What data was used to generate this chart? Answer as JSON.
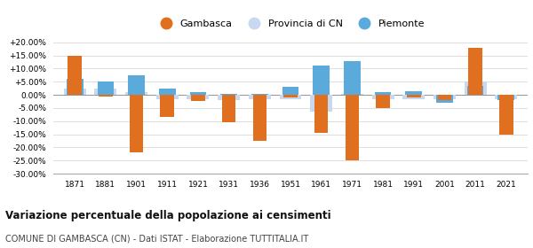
{
  "years": [
    1871,
    1881,
    1901,
    1911,
    1921,
    1931,
    1936,
    1951,
    1961,
    1971,
    1981,
    1991,
    2001,
    2011,
    2021
  ],
  "gambasca": [
    15.0,
    -0.5,
    -22.0,
    -8.5,
    -2.5,
    -10.5,
    -17.5,
    -1.0,
    -14.5,
    -25.0,
    -5.0,
    -1.0,
    -2.0,
    18.0,
    -15.0
  ],
  "provincia_cn": [
    2.5,
    2.5,
    1.0,
    -1.5,
    -1.5,
    -2.0,
    -1.5,
    -1.5,
    -6.5,
    0.5,
    -1.5,
    -1.5,
    -1.5,
    5.0,
    -1.5
  ],
  "piemonte": [
    6.0,
    5.0,
    7.5,
    2.5,
    1.0,
    0.5,
    0.5,
    3.0,
    11.0,
    13.0,
    1.0,
    1.5,
    -3.0,
    3.5,
    -2.0
  ],
  "color_gambasca": "#e07020",
  "color_provincia": "#c8d8f0",
  "color_piemonte": "#5aabdc",
  "ylim_min": -30,
  "ylim_max": 20,
  "yticks": [
    -30,
    -25,
    -20,
    -15,
    -10,
    -5,
    0,
    5,
    10,
    15,
    20
  ],
  "ytick_labels": [
    "-30.00%",
    "-25.00%",
    "-20.00%",
    "-15.00%",
    "-10.00%",
    "-5.00%",
    "0.00%",
    "+5.00%",
    "+10.00%",
    "+15.00%",
    "+20.00%"
  ],
  "title": "Variazione percentuale della popolazione ai censimenti",
  "subtitle": "COMUNE DI GAMBASCA (CN) - Dati ISTAT - Elaborazione TUTTITALIA.IT",
  "legend_labels": [
    "Gambasca",
    "Provincia di CN",
    "Piemonte"
  ]
}
